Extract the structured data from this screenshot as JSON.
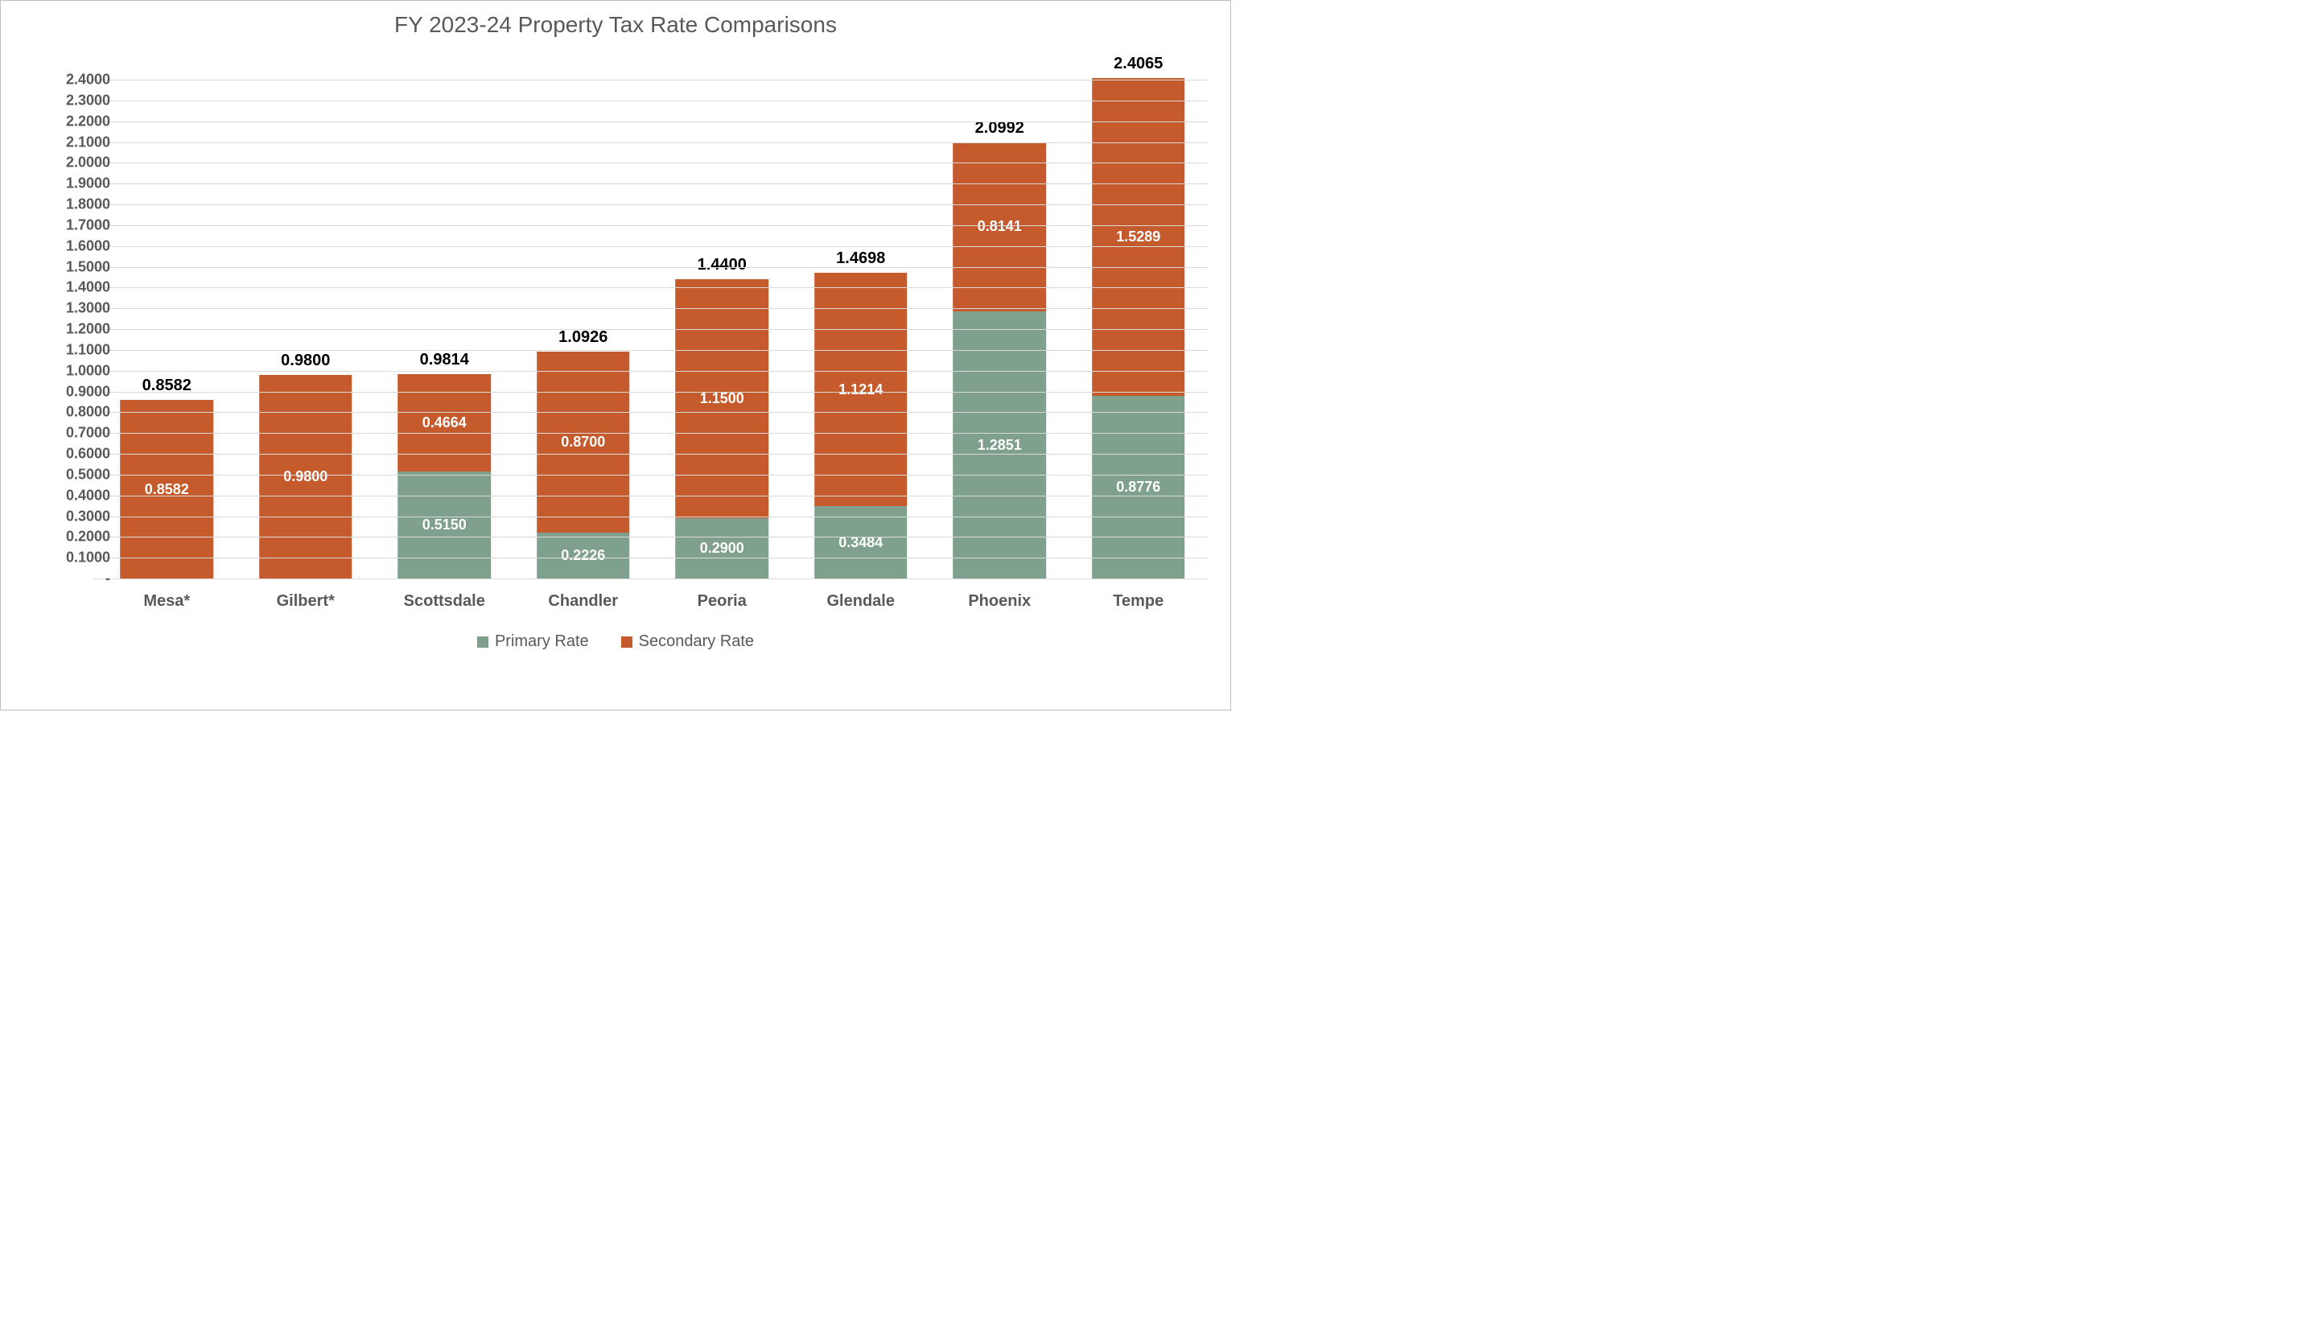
{
  "chart": {
    "type": "stacked-bar",
    "title": "FY 2023-24 Property Tax Rate Comparisons",
    "title_fontsize": 28,
    "title_color": "#595959",
    "background_color": "#ffffff",
    "border_color": "#bfbfbf",
    "grid_color": "#d9d9d9",
    "ylim": [
      0,
      2.4
    ],
    "ytick_step": 0.1,
    "ytick_format": "0.0000",
    "ytick_fontsize": 18,
    "ytick_color": "#595959",
    "xlabel_fontsize": 20,
    "xlabel_color": "#595959",
    "bar_width_pct": 67,
    "data_label_color": "#ffffff",
    "data_label_fontsize": 18,
    "total_label_color": "#000000",
    "total_label_fontsize": 20,
    "categories": [
      "Mesa*",
      "Gilbert*",
      "Scottsdale",
      "Chandler",
      "Peoria",
      "Glendale",
      "Phoenix",
      "Tempe"
    ],
    "series": [
      {
        "name": "Primary Rate",
        "color": "#7fa08c",
        "values": [
          0,
          0,
          0.515,
          0.2226,
          0.29,
          0.3484,
          1.2851,
          0.8776
        ]
      },
      {
        "name": "Secondary Rate",
        "color": "#c55a2d",
        "values": [
          0.8582,
          0.98,
          0.4664,
          0.87,
          1.15,
          1.1214,
          0.8141,
          1.5289
        ]
      }
    ],
    "totals": [
      0.8582,
      0.98,
      0.9814,
      1.0926,
      1.44,
      1.4698,
      2.0992,
      2.4065
    ],
    "legend_fontsize": 20,
    "legend_color": "#595959"
  }
}
